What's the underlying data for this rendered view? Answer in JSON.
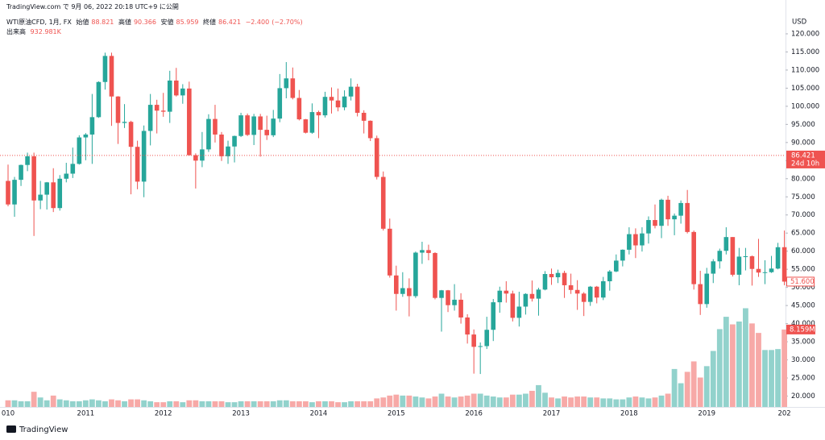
{
  "chart_data": {
    "type": "candlestick",
    "publish_note": "TradingView.com で 9月 06, 2022 20:18 UTC+9 に公開",
    "symbol": "WTI原油CFD, 1月, FX",
    "legend": {
      "open_label": "始値",
      "open": 88.821,
      "high_label": "高値",
      "high": 90.366,
      "low_label": "安値",
      "low": 85.959,
      "close_label": "終値",
      "close": 86.421,
      "change": {
        "value": -2.4,
        "label": "−2.400"
      },
      "change_pct": {
        "value": -2.7,
        "label": "(−2.70%)"
      },
      "volume_label": "出来高",
      "volume": {
        "value": 0.932981,
        "label": "932.981K"
      }
    },
    "currency": "USD",
    "last_price": {
      "value": 86.421,
      "label": "86.421"
    },
    "countdown": "24d 10h",
    "last_bar_close": {
      "value": 51.6,
      "label": "51.600"
    },
    "last_bar_volume": {
      "value": 8.159,
      "label": "8.159M"
    },
    "brand": "TradingView",
    "up_color": "#26a69a",
    "down_color": "#ef5350",
    "up_volume_color": "#92d2cc",
    "down_volume_color": "#f7a9a7",
    "grid": false,
    "categories": [
      "010",
      null,
      null,
      null,
      null,
      null,
      null,
      null,
      null,
      null,
      null,
      null,
      "2011",
      null,
      null,
      null,
      null,
      null,
      null,
      null,
      null,
      null,
      null,
      null,
      "2012",
      null,
      null,
      null,
      null,
      null,
      null,
      null,
      null,
      null,
      null,
      null,
      "2013",
      null,
      null,
      null,
      null,
      null,
      null,
      null,
      null,
      null,
      null,
      null,
      "2014",
      null,
      null,
      null,
      null,
      null,
      null,
      null,
      null,
      null,
      null,
      null,
      "2015",
      null,
      null,
      null,
      null,
      null,
      null,
      null,
      null,
      null,
      null,
      null,
      "2016",
      null,
      null,
      null,
      null,
      null,
      null,
      null,
      null,
      null,
      null,
      null,
      "2017",
      null,
      null,
      null,
      null,
      null,
      null,
      null,
      null,
      null,
      null,
      null,
      "2018",
      null,
      null,
      null,
      null,
      null,
      null,
      null,
      null,
      null,
      null,
      null,
      "2019",
      null,
      null,
      null,
      null,
      null,
      null,
      null,
      null,
      null,
      null,
      null,
      "202"
    ],
    "open": [
      79.4,
      72.9,
      79.7,
      83.8,
      86.2,
      74.0,
      75.6,
      79.0,
      71.9,
      80.0,
      81.4,
      84.1,
      91.4,
      92.2,
      97.0,
      106.7,
      113.9,
      102.7,
      95.4,
      95.7,
      88.8,
      79.2,
      93.2,
      100.4,
      98.8,
      98.5,
      107.1,
      103.0,
      104.9,
      86.5,
      85.0,
      88.1,
      96.5,
      92.2,
      86.2,
      88.9,
      91.8,
      97.5,
      92.1,
      97.2,
      93.5,
      92.0,
      96.6,
      105.0,
      107.7,
      102.3,
      96.4,
      92.7,
      98.4,
      97.5,
      102.6,
      101.6,
      99.7,
      102.7,
      105.4,
      98.2,
      96.0,
      91.2,
      80.5,
      66.2,
      53.3,
      48.2,
      49.8,
      47.6,
      59.6,
      60.3,
      59.5,
      47.1,
      49.2,
      45.1,
      46.6,
      41.7,
      37.0,
      33.6,
      33.8,
      38.3,
      45.9,
      49.1,
      48.3,
      41.6,
      44.7,
      48.2,
      46.9,
      49.4,
      53.7,
      52.8,
      54.0,
      50.6,
      49.3,
      48.3,
      46.0,
      50.2,
      47.2,
      51.7,
      54.4,
      57.4,
      60.4,
      64.7,
      61.6,
      64.9,
      68.6,
      67.0,
      74.2,
      68.8,
      69.8,
      73.3,
      65.3,
      50.9,
      45.4,
      53.8,
      57.2,
      60.1,
      63.9,
      53.5,
      58.5,
      58.6,
      55.1,
      54.1,
      54.2,
      55.2,
      61.1
    ],
    "high": [
      83.9,
      80.5,
      83.9,
      87.2,
      87.2,
      79.4,
      79.1,
      82.9,
      81.0,
      84.4,
      88.6,
      92.0,
      92.6,
      103.4,
      106.9,
      114.8,
      114.8,
      102.8,
      100.6,
      96.0,
      90.5,
      94.7,
      103.4,
      101.8,
      103.7,
      109.8,
      110.6,
      106.1,
      106.8,
      87.0,
      92.9,
      97.8,
      100.4,
      92.9,
      90.5,
      91.9,
      98.2,
      98.0,
      97.9,
      97.9,
      97.4,
      99.0,
      108.9,
      112.2,
      110.7,
      104.5,
      96.5,
      100.8,
      98.8,
      104.0,
      105.2,
      104.9,
      104.4,
      107.7,
      106.2,
      98.9,
      96.1,
      91.9,
      82.0,
      69.0,
      56.0,
      54.2,
      52.5,
      59.9,
      62.6,
      61.8,
      59.7,
      49.3,
      49.3,
      50.9,
      48.4,
      42.6,
      38.4,
      34.8,
      41.9,
      46.8,
      50.2,
      51.7,
      49.1,
      48.8,
      48.4,
      51.9,
      49.9,
      54.5,
      55.2,
      54.9,
      54.6,
      53.8,
      52.0,
      48.7,
      50.4,
      50.4,
      52.9,
      54.8,
      59.1,
      60.5,
      66.6,
      66.3,
      66.6,
      69.6,
      72.9,
      74.5,
      75.3,
      70.4,
      74.0,
      76.9,
      65.7,
      54.6,
      55.4,
      57.8,
      60.7,
      66.6,
      63.9,
      60.9,
      60.9,
      58.8,
      63.4,
      57.5,
      58.7,
      62.3,
      65.7
    ],
    "low": [
      72.4,
      69.5,
      78.0,
      82.1,
      64.2,
      71.6,
      71.5,
      70.8,
      71.2,
      79.0,
      80.2,
      83.9,
      85.1,
      84.1,
      96.8,
      104.6,
      94.6,
      89.6,
      94.0,
      75.7,
      77.1,
      74.9,
      89.2,
      92.5,
      97.1,
      95.4,
      102.7,
      100.7,
      86.4,
      77.3,
      83.2,
      87.4,
      90.0,
      84.9,
      84.1,
      84.5,
      91.5,
      91.8,
      89.3,
      86.1,
      90.7,
      91.5,
      95.6,
      102.2,
      101.9,
      96.1,
      92.5,
      92.4,
      91.2,
      96.9,
      98.0,
      98.6,
      98.9,
      101.6,
      97.2,
      92.5,
      90.4,
      79.8,
      65.7,
      52.7,
      43.6,
      47.4,
      42.0,
      47.1,
      56.5,
      57.5,
      46.7,
      37.8,
      43.2,
      43.6,
      40.0,
      34.5,
      26.2,
      26.1,
      33.0,
      35.2,
      43.0,
      45.8,
      40.6,
      39.2,
      42.5,
      46.1,
      42.2,
      49.2,
      50.7,
      51.2,
      47.1,
      48.2,
      43.8,
      42.1,
      44.9,
      45.6,
      46.5,
      49.1,
      54.2,
      55.8,
      59.1,
      58.1,
      59.9,
      62.1,
      66.3,
      63.6,
      67.0,
      64.4,
      67.6,
      64.9,
      49.4,
      42.4,
      44.4,
      51.2,
      55.2,
      59.1,
      53.0,
      50.6,
      54.7,
      50.5,
      52.9,
      50.9,
      54.0,
      55.0,
      50.6
    ],
    "close": [
      72.9,
      79.7,
      83.8,
      86.2,
      74.0,
      75.6,
      79.0,
      71.9,
      80.0,
      81.4,
      84.1,
      91.4,
      92.2,
      97.0,
      106.7,
      113.9,
      102.7,
      95.4,
      95.7,
      88.8,
      79.2,
      93.2,
      100.4,
      98.8,
      98.5,
      107.1,
      103.0,
      104.9,
      86.5,
      85.0,
      88.1,
      96.5,
      92.2,
      86.2,
      88.9,
      91.8,
      97.5,
      92.1,
      97.2,
      93.5,
      92.0,
      96.6,
      105.0,
      107.7,
      102.3,
      96.4,
      92.7,
      98.4,
      97.5,
      102.6,
      101.6,
      99.7,
      102.7,
      105.4,
      98.2,
      96.0,
      91.2,
      80.5,
      66.2,
      53.3,
      48.2,
      49.8,
      47.6,
      59.6,
      60.3,
      59.5,
      47.1,
      49.2,
      45.1,
      46.6,
      41.7,
      37.0,
      33.6,
      33.8,
      38.3,
      45.9,
      49.1,
      48.3,
      41.6,
      44.7,
      48.2,
      46.9,
      49.4,
      53.7,
      52.8,
      54.0,
      50.6,
      49.3,
      48.3,
      46.0,
      50.2,
      47.2,
      51.7,
      54.4,
      57.4,
      60.4,
      64.7,
      61.6,
      64.9,
      68.6,
      67.0,
      74.2,
      68.8,
      69.8,
      73.3,
      65.3,
      50.9,
      45.4,
      53.8,
      57.2,
      60.1,
      63.9,
      53.5,
      58.5,
      58.6,
      55.1,
      54.1,
      54.2,
      55.2,
      61.1,
      51.6
    ],
    "volume": [
      0.7,
      0.7,
      0.6,
      0.6,
      1.6,
      1.0,
      0.7,
      1.2,
      0.8,
      0.7,
      0.6,
      0.6,
      0.7,
      0.8,
      0.7,
      0.6,
      0.8,
      0.7,
      0.6,
      0.8,
      0.8,
      0.7,
      0.6,
      0.5,
      0.5,
      0.6,
      0.6,
      0.5,
      0.7,
      0.7,
      0.6,
      0.6,
      0.6,
      0.6,
      0.5,
      0.5,
      0.6,
      0.6,
      0.6,
      0.6,
      0.6,
      0.6,
      0.7,
      0.7,
      0.6,
      0.6,
      0.6,
      0.5,
      0.6,
      0.6,
      0.6,
      0.5,
      0.5,
      0.6,
      0.6,
      0.6,
      0.6,
      0.9,
      1.0,
      1.2,
      1.3,
      1.2,
      1.2,
      1.1,
      1.0,
      0.9,
      1.1,
      1.4,
      1.1,
      1.0,
      1.1,
      1.2,
      1.4,
      1.4,
      1.2,
      1.1,
      1.0,
      1.0,
      1.3,
      1.3,
      1.4,
      1.7,
      2.3,
      1.5,
      1.0,
      0.9,
      1.1,
      1.0,
      1.1,
      1.1,
      1.0,
      1.0,
      0.9,
      0.9,
      0.8,
      0.8,
      1.0,
      1.1,
      1.0,
      0.9,
      1.0,
      1.2,
      1.4,
      4.0,
      2.5,
      3.7,
      4.8,
      3.1,
      4.3,
      5.9,
      8.2,
      9.5,
      8.7,
      9.0,
      10.4,
      8.8,
      7.8,
      6.0,
      6.0,
      6.1,
      8.159
    ],
    "volume_lim": [
      0,
      41.6
    ],
    "ylim": [
      17,
      126
    ],
    "yticks": [
      {
        "value": 20,
        "label": "20.000"
      },
      {
        "value": 25,
        "label": "25.000"
      },
      {
        "value": 30,
        "label": "30.000"
      },
      {
        "value": 35,
        "label": "35.000"
      },
      {
        "value": 40,
        "label": "40.000"
      },
      {
        "value": 45,
        "label": "45.000"
      },
      {
        "value": 50,
        "label": "50.000"
      },
      {
        "value": 55,
        "label": "55.000"
      },
      {
        "value": 60,
        "label": "60.000"
      },
      {
        "value": 65,
        "label": "65.000"
      },
      {
        "value": 70,
        "label": "70.000"
      },
      {
        "value": 75,
        "label": "75.000"
      },
      {
        "value": 80,
        "label": "80.000"
      },
      {
        "value": 85,
        "label": "85.000"
      },
      {
        "value": 90,
        "label": "90.000"
      },
      {
        "value": 95,
        "label": "95.000"
      },
      {
        "value": 100,
        "label": "100.000"
      },
      {
        "value": 105,
        "label": "105.000"
      },
      {
        "value": 110,
        "label": "110.000"
      },
      {
        "value": 115,
        "label": "115.000"
      },
      {
        "value": 120,
        "label": "120.000"
      }
    ]
  }
}
